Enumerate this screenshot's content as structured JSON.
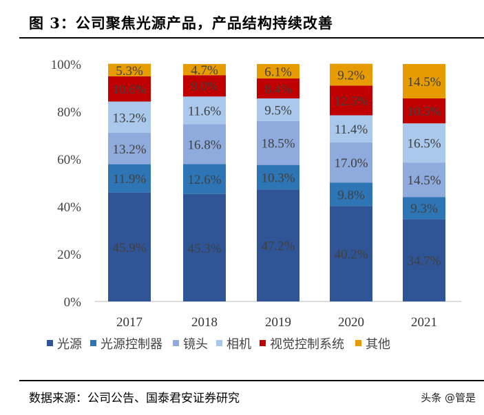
{
  "title": "图 3：公司聚焦光源产品，产品结构持续改善",
  "source": "数据来源：公司公告、国泰君安证券研究",
  "watermark": "头条 @管是",
  "chart_data": {
    "type": "bar",
    "stacked": true,
    "categories": [
      "2017",
      "2018",
      "2019",
      "2020",
      "2021"
    ],
    "ylim": [
      0,
      100
    ],
    "yticks": [
      "0%",
      "20%",
      "40%",
      "60%",
      "80%",
      "100%"
    ],
    "legend_position": "bottom",
    "grid": false,
    "series": [
      {
        "name": "光源",
        "color": "#2F5597",
        "values": [
          45.9,
          45.3,
          47.2,
          40.2,
          34.7
        ]
      },
      {
        "name": "光源控制器",
        "color": "#2E75B6",
        "values": [
          11.9,
          12.6,
          10.3,
          9.8,
          9.3
        ]
      },
      {
        "name": "镜头",
        "color": "#8FAADC",
        "values": [
          13.2,
          16.8,
          18.5,
          17.0,
          14.5
        ]
      },
      {
        "name": "相机",
        "color": "#A9C8EC",
        "values": [
          13.2,
          11.6,
          9.5,
          11.4,
          16.5
        ]
      },
      {
        "name": "视觉控制系统",
        "color": "#C00000",
        "values": [
          10.6,
          9.0,
          8.4,
          12.5,
          10.5
        ]
      },
      {
        "name": "其他",
        "color": "#E69B00",
        "values": [
          5.3,
          4.7,
          6.1,
          9.2,
          14.5
        ]
      }
    ]
  }
}
